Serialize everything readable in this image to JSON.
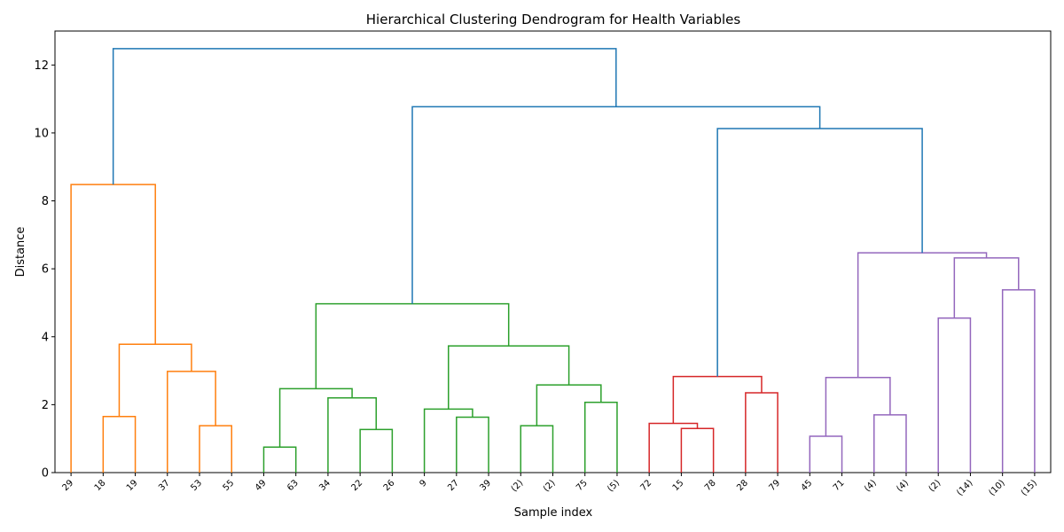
{
  "chart_data": {
    "type": "dendrogram",
    "title": "Hierarchical Clustering Dendrogram for Health Variables",
    "xlabel": "Sample index",
    "ylabel": "Distance",
    "ylim": [
      0,
      13
    ],
    "yticks": [
      0,
      2,
      4,
      6,
      8,
      10,
      12
    ],
    "grid": false,
    "leaves": [
      "29",
      "18",
      "19",
      "37",
      "53",
      "55",
      "49",
      "63",
      "34",
      "22",
      "26",
      "9",
      "27",
      "39",
      "(2)",
      "(2)",
      "75",
      "(5)",
      "72",
      "15",
      "78",
      "28",
      "79",
      "45",
      "71",
      "(4)",
      "(4)",
      "(2)",
      "(14)",
      "(10)",
      "(15)"
    ],
    "colors": {
      "orange": "#ff7f0e",
      "green": "#2ca02c",
      "red": "#d62728",
      "purple": "#9467bd",
      "blue": "#1f77b4"
    },
    "merges": [
      {
        "id": "o1",
        "left": "L1",
        "right": "L2",
        "height": 1.65,
        "color": "orange"
      },
      {
        "id": "o2",
        "left": "L4",
        "right": "L5",
        "height": 1.38,
        "color": "orange"
      },
      {
        "id": "o3",
        "left": "L3",
        "right": "o2",
        "height": 2.98,
        "color": "orange"
      },
      {
        "id": "o4",
        "left": "o1",
        "right": "o3",
        "height": 3.78,
        "color": "orange"
      },
      {
        "id": "o5",
        "left": "L0",
        "right": "o4",
        "height": 8.48,
        "color": "orange"
      },
      {
        "id": "g1",
        "left": "L6",
        "right": "L7",
        "height": 0.75,
        "color": "green"
      },
      {
        "id": "g2",
        "left": "L9",
        "right": "L10",
        "height": 1.27,
        "color": "green"
      },
      {
        "id": "g3",
        "left": "L8",
        "right": "g2",
        "height": 2.2,
        "color": "green"
      },
      {
        "id": "g4",
        "left": "g1",
        "right": "g3",
        "height": 2.47,
        "color": "green"
      },
      {
        "id": "g5",
        "left": "L12",
        "right": "L13",
        "height": 1.63,
        "color": "green"
      },
      {
        "id": "g6",
        "left": "L11",
        "right": "g5",
        "height": 1.87,
        "color": "green"
      },
      {
        "id": "g7",
        "left": "L14",
        "right": "L15",
        "height": 1.38,
        "color": "green"
      },
      {
        "id": "g8",
        "left": "L16",
        "right": "L17",
        "height": 2.07,
        "color": "green"
      },
      {
        "id": "g9",
        "left": "g7",
        "right": "g8",
        "height": 2.58,
        "color": "green"
      },
      {
        "id": "g10",
        "left": "g6",
        "right": "g9",
        "height": 3.73,
        "color": "green"
      },
      {
        "id": "g11",
        "left": "g4",
        "right": "g10",
        "height": 4.97,
        "color": "green"
      },
      {
        "id": "r1",
        "left": "L19",
        "right": "L20",
        "height": 1.3,
        "color": "red"
      },
      {
        "id": "r2",
        "left": "L18",
        "right": "r1",
        "height": 1.45,
        "color": "red"
      },
      {
        "id": "r3",
        "left": "L21",
        "right": "L22",
        "height": 2.35,
        "color": "red"
      },
      {
        "id": "r4",
        "left": "r2",
        "right": "r3",
        "height": 2.83,
        "color": "red"
      },
      {
        "id": "p1",
        "left": "L23",
        "right": "L24",
        "height": 1.07,
        "color": "purple"
      },
      {
        "id": "p2",
        "left": "L25",
        "right": "L26",
        "height": 1.7,
        "color": "purple"
      },
      {
        "id": "p3",
        "left": "p1",
        "right": "p2",
        "height": 2.8,
        "color": "purple"
      },
      {
        "id": "p4",
        "left": "L27",
        "right": "L28",
        "height": 4.55,
        "color": "purple"
      },
      {
        "id": "p5",
        "left": "L29",
        "right": "L30",
        "height": 5.38,
        "color": "purple"
      },
      {
        "id": "p6",
        "left": "p4",
        "right": "p5",
        "height": 6.32,
        "color": "purple"
      },
      {
        "id": "p7",
        "left": "p3",
        "right": "p6",
        "height": 6.47,
        "color": "purple"
      },
      {
        "id": "b1",
        "left": "r4",
        "right": "p7",
        "height": 10.13,
        "color": "blue"
      },
      {
        "id": "b2",
        "left": "g11",
        "right": "b1",
        "height": 10.77,
        "color": "blue"
      },
      {
        "id": "b3",
        "left": "o5",
        "right": "b2",
        "height": 12.48,
        "color": "blue"
      }
    ]
  }
}
